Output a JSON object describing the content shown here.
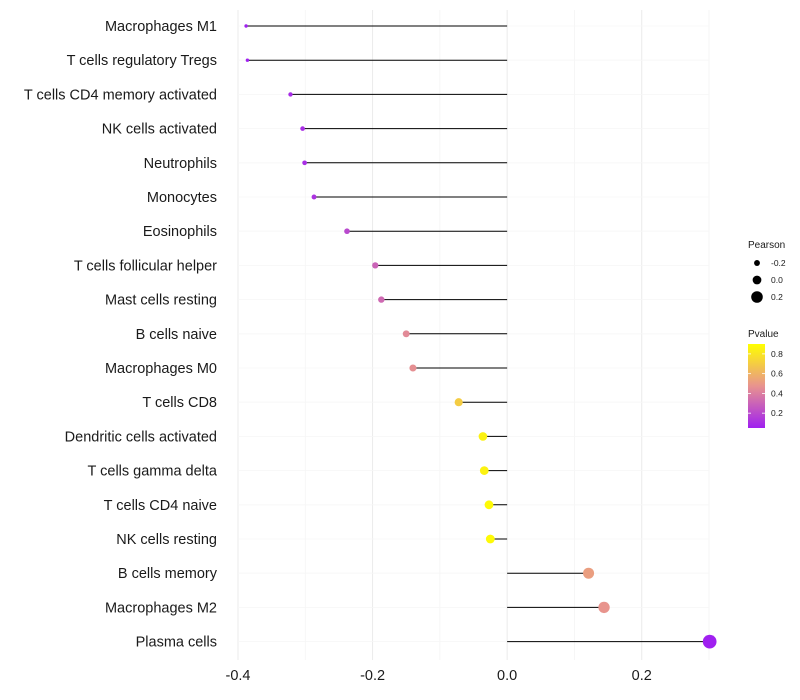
{
  "chart_data": {
    "type": "lollipop",
    "title": "",
    "xlabel": "",
    "ylabel": "",
    "xlim": [
      -0.4,
      0.3
    ],
    "xticks": [
      -0.4,
      -0.2,
      0.0,
      0.2
    ],
    "xtick_labels": [
      "-0.4",
      "-0.2",
      "0.0",
      "0.2"
    ],
    "grid": true,
    "categories": [
      "Macrophages M1",
      "T cells regulatory  Tregs",
      "T cells CD4 memory activated",
      "NK cells activated",
      "Neutrophils",
      "Monocytes",
      "Eosinophils",
      "T cells follicular helper",
      "Mast cells resting",
      "B cells naive",
      "Macrophages M0",
      "T cells CD8",
      "Dendritic cells activated",
      "T cells gamma delta",
      "T cells CD4 naive",
      "NK cells resting",
      "B cells memory",
      "Macrophages M2",
      "Plasma cells"
    ],
    "pearson": [
      -0.388,
      -0.386,
      -0.322,
      -0.304,
      -0.301,
      -0.287,
      -0.238,
      -0.196,
      -0.187,
      -0.15,
      -0.14,
      -0.072,
      -0.036,
      -0.034,
      -0.027,
      -0.025,
      0.121,
      0.144,
      0.301
    ],
    "pvalue": [
      0.05,
      0.05,
      0.09,
      0.1,
      0.1,
      0.12,
      0.2,
      0.3,
      0.32,
      0.44,
      0.46,
      0.7,
      0.85,
      0.85,
      0.88,
      0.88,
      0.52,
      0.48,
      0.05
    ],
    "legend": {
      "position": "right",
      "size_title": "Pearson",
      "size_breaks": [
        -0.2,
        0.0,
        0.2
      ],
      "size_labels": [
        "-0.2",
        "0.0",
        "0.2"
      ],
      "color_title": "Pvalue",
      "color_breaks": [
        0.2,
        0.4,
        0.6,
        0.8
      ],
      "color_labels": [
        "0.2",
        "0.4",
        "0.6",
        "0.8"
      ],
      "color_range": [
        0.05,
        0.9
      ],
      "color_low": "#a020f0",
      "color_mid": "#e8938f",
      "color_high": "#ffff00"
    }
  }
}
